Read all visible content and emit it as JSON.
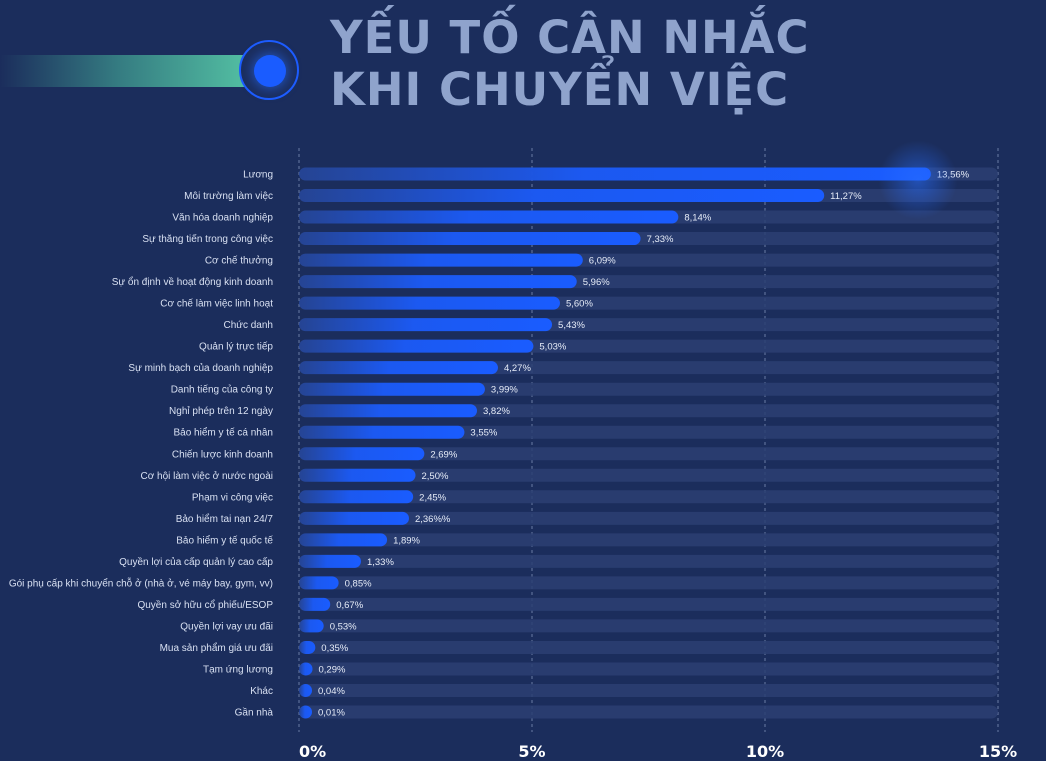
{
  "header": {
    "title_line1": "YẾU TỐ CÂN NHẮC",
    "title_line2": "KHI CHUYỂN VIỆC"
  },
  "colors": {
    "background": "#1b2d5c",
    "bar": "#1a5cff",
    "track": "#2c3f72",
    "accent_green": "#56c6a6",
    "title": "#8fa3cc"
  },
  "chart_data": {
    "type": "bar",
    "orientation": "horizontal",
    "title": "YẾU TỐ CÂN NHẮC KHI CHUYỂN VIỆC",
    "xlabel": "",
    "ylabel": "",
    "xlim": [
      0,
      15
    ],
    "grid": true,
    "categories": [
      "Lương",
      "Môi trường làm việc",
      "Văn hóa doanh nghiệp",
      "Sự thăng tiến trong công việc",
      "Cơ chế thưởng",
      "Sự ổn định về hoạt động kinh doanh",
      "Cơ chế làm việc linh hoạt",
      "Chức danh",
      "Quản lý trực tiếp",
      "Sự minh bạch của doanh nghiệp",
      "Danh tiếng của công ty",
      "Nghỉ phép trên 12 ngày",
      "Bảo hiểm y tế cá nhân",
      "Chiến lược kinh doanh",
      "Cơ hội làm việc ở nước ngoài",
      "Phạm vi công việc",
      "Bảo hiểm tai nạn 24/7",
      "Bảo hiểm y tế quốc tế",
      "Quyền lợi của cấp quản lý cao cấp",
      "Gói phụ cấp khi chuyển chỗ ở (nhà ở, vé máy bay, gym, vv)",
      "Quyền sở hữu cổ phiếu/ESOP",
      "Quyền lợi vay ưu đãi",
      "Mua sản phẩm giá ưu đãi",
      "Tạm ứng lương",
      "Khác",
      "Gần nhà"
    ],
    "values": [
      13.56,
      11.27,
      8.14,
      7.33,
      6.09,
      5.96,
      5.6,
      5.43,
      5.03,
      4.27,
      3.99,
      3.82,
      3.55,
      2.69,
      2.5,
      2.45,
      2.36,
      1.89,
      1.33,
      0.85,
      0.67,
      0.53,
      0.35,
      0.29,
      0.04,
      0.01
    ],
    "value_labels": [
      "13,56%",
      "11,27%",
      "8,14%",
      "7,33%",
      "6,09%",
      "5,96%",
      "5,60%",
      "5,43%",
      "5,03%",
      "4,27%",
      "3,99%",
      "3,82%",
      "3,55%",
      "2,69%",
      "2,50%",
      "2,45%",
      "2,36%%",
      "1,89%",
      "1,33%",
      "0,85%",
      "0,67%",
      "0,53%",
      "0,35%",
      "0,29%",
      "0,04%",
      "0,01%"
    ],
    "ticks": [
      0,
      5,
      10,
      15
    ],
    "tick_labels": [
      "0%",
      "5%",
      "10%",
      "15%"
    ]
  }
}
